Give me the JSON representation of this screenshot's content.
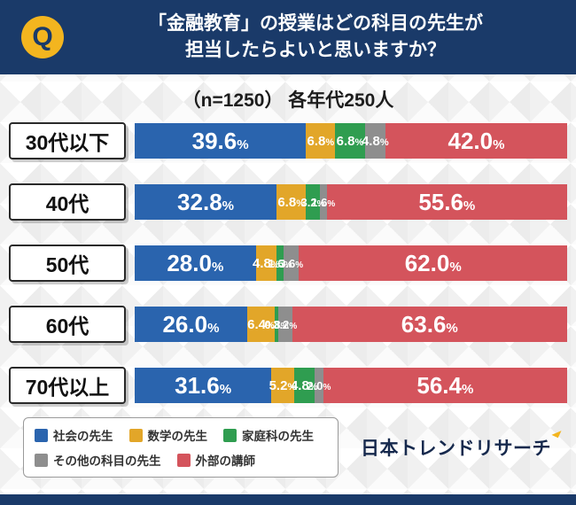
{
  "header": {
    "q_label": "Q",
    "title_line1": "「金融教育」の授業はどの科目の先生が",
    "title_line2": "担当したらよいと思いますか？"
  },
  "subtitle": "（n=1250） 各年代250人",
  "chart_data": {
    "type": "bar",
    "stacked": true,
    "orientation": "horizontal",
    "unit": "%",
    "xlim": [
      0,
      100
    ],
    "categories": [
      "30代以下",
      "40代",
      "50代",
      "60代",
      "70代以上"
    ],
    "series": [
      {
        "name": "社会の先生",
        "color": "#2a64ae",
        "values": [
          39.6,
          32.8,
          28.0,
          26.0,
          31.6
        ]
      },
      {
        "name": "数学の先生",
        "color": "#e2a629",
        "values": [
          6.8,
          6.8,
          4.8,
          6.4,
          5.2
        ]
      },
      {
        "name": "家庭科の先生",
        "color": "#2f9d50",
        "values": [
          6.8,
          3.2,
          1.6,
          0.8,
          4.8
        ]
      },
      {
        "name": "その他の科目の先生",
        "color": "#8e8e8e",
        "values": [
          4.8,
          1.6,
          3.6,
          3.2,
          2.0
        ]
      },
      {
        "name": "外部の講師",
        "color": "#d4545c",
        "values": [
          42.0,
          55.6,
          62.0,
          63.6,
          56.4
        ]
      }
    ],
    "legend_position": "bottom-left",
    "grid": false
  },
  "footer": {
    "brand": "日本トレンドリサーチ"
  },
  "colors": {
    "header_bg": "#1a3a69",
    "q_badge_bg": "#f3b51f",
    "footer_strip": "#1a3a69",
    "brand_text": "#16294d"
  }
}
